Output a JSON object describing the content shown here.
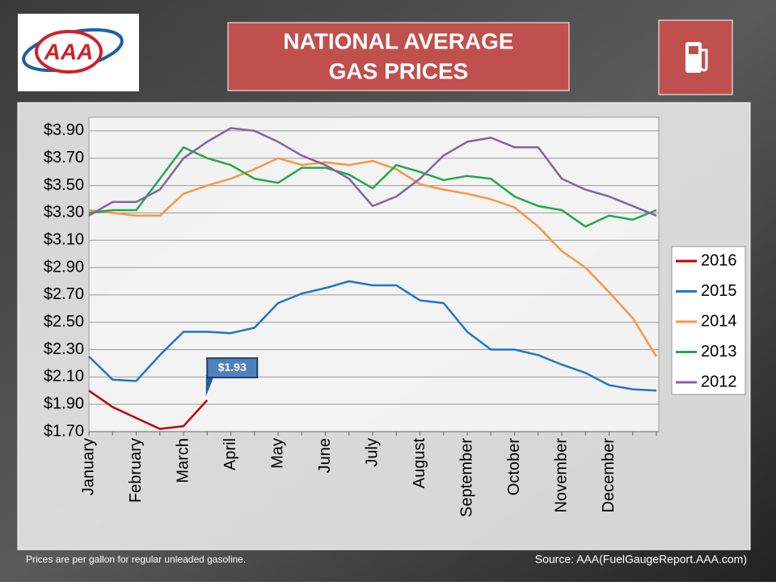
{
  "logo_text": "AAA",
  "footnote": "Prices are per gallon for regular unleaded gasoline.",
  "source": "Source: AAA(FuelGaugeReport.AAA.com)",
  "chart_data": {
    "type": "line",
    "title_lines": [
      "NATIONAL AVERAGE",
      "GAS PRICES"
    ],
    "categories": [
      "January",
      null,
      "February",
      null,
      "March",
      null,
      "April",
      null,
      "May",
      null,
      "June",
      null,
      "July",
      null,
      "August",
      null,
      "September",
      null,
      "October",
      null,
      "November",
      null,
      "December",
      null,
      null
    ],
    "series": [
      {
        "name": "2016",
        "color": "#c00000",
        "values": [
          2.0,
          1.88,
          1.8,
          1.72,
          1.74,
          1.93,
          null,
          null,
          null,
          null,
          null,
          null,
          null,
          null,
          null,
          null,
          null,
          null,
          null,
          null,
          null,
          null,
          null,
          null,
          null
        ],
        "value_labels": [
          null,
          null,
          null,
          null,
          null,
          "$1.93",
          null,
          null,
          null,
          null,
          null,
          null,
          null,
          null,
          null,
          null,
          null,
          null,
          null,
          null,
          null,
          null,
          null,
          null,
          null
        ]
      },
      {
        "name": "2015",
        "color": "#1f77c4",
        "values": [
          2.25,
          2.08,
          2.07,
          2.26,
          2.43,
          2.43,
          2.42,
          2.46,
          2.64,
          2.71,
          2.75,
          2.8,
          2.77,
          2.77,
          2.66,
          2.64,
          2.43,
          2.3,
          2.3,
          2.26,
          2.19,
          2.13,
          2.04,
          2.01,
          2.0
        ]
      },
      {
        "name": "2014",
        "color": "#f79646",
        "values": [
          3.32,
          3.3,
          3.28,
          3.28,
          3.44,
          3.5,
          3.55,
          3.62,
          3.7,
          3.65,
          3.67,
          3.65,
          3.68,
          3.62,
          3.51,
          3.47,
          3.44,
          3.4,
          3.34,
          3.2,
          3.02,
          2.9,
          2.72,
          2.53,
          2.25
        ]
      },
      {
        "name": "2013",
        "color": "#22a84a",
        "values": [
          3.3,
          3.32,
          3.32,
          3.55,
          3.78,
          3.7,
          3.65,
          3.55,
          3.52,
          3.63,
          3.63,
          3.58,
          3.48,
          3.65,
          3.6,
          3.54,
          3.57,
          3.55,
          3.42,
          3.35,
          3.32,
          3.2,
          3.28,
          3.25,
          3.32
        ]
      },
      {
        "name": "2012",
        "color": "#8064a2",
        "values": [
          3.28,
          3.38,
          3.38,
          3.47,
          3.7,
          3.82,
          3.92,
          3.9,
          3.82,
          3.72,
          3.65,
          3.55,
          3.35,
          3.42,
          3.55,
          3.72,
          3.82,
          3.85,
          3.78,
          3.78,
          3.55,
          3.47,
          3.42,
          3.35,
          3.28
        ]
      }
    ],
    "ylim": [
      1.7,
      4.0
    ],
    "yticks": [
      {
        "value": 1.7,
        "label": "$1.70"
      },
      {
        "value": 1.9,
        "label": "$1.90"
      },
      {
        "value": 2.1,
        "label": "$2.10"
      },
      {
        "value": 2.3,
        "label": "$2.30"
      },
      {
        "value": 2.5,
        "label": "$2.50"
      },
      {
        "value": 2.7,
        "label": "$2.70"
      },
      {
        "value": 2.9,
        "label": "$2.90"
      },
      {
        "value": 3.1,
        "label": "$3.10"
      },
      {
        "value": 3.3,
        "label": "$3.30"
      },
      {
        "value": 3.5,
        "label": "$3.50"
      },
      {
        "value": 3.7,
        "label": "$3.70"
      },
      {
        "value": 3.9,
        "label": "$3.90"
      }
    ],
    "grid": true,
    "legend": "right"
  }
}
